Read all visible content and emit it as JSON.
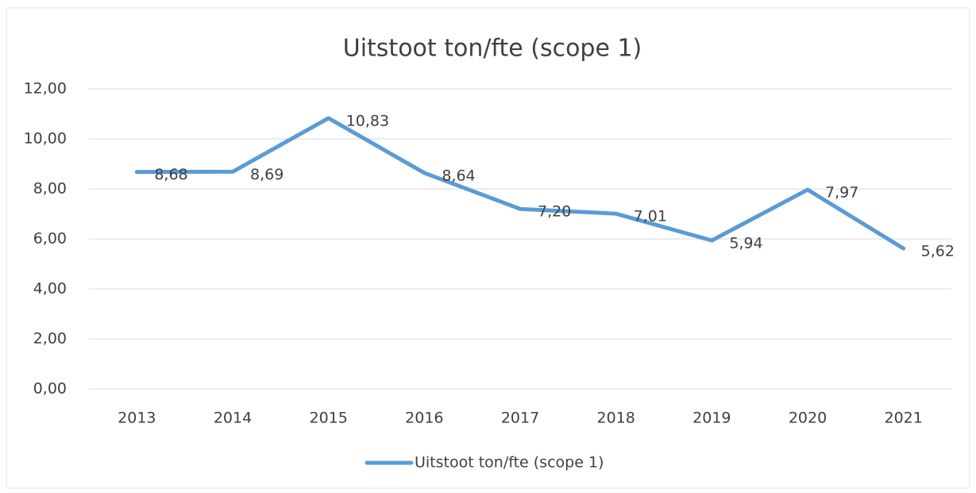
{
  "chart_data": {
    "type": "line",
    "title": "Uitstoot ton/fte (scope 1)",
    "categories": [
      "2013",
      "2014",
      "2015",
      "2016",
      "2017",
      "2018",
      "2019",
      "2020",
      "2021"
    ],
    "series": [
      {
        "name": "Uitstoot ton/fte (scope 1)",
        "color": "#5b9bd5",
        "values": [
          8.68,
          8.69,
          10.83,
          8.64,
          7.2,
          7.01,
          5.94,
          7.97,
          5.62
        ],
        "value_labels": [
          "8,68",
          "8,69",
          "10,83",
          "8,64",
          "7,20",
          "7,01",
          "5,94",
          "7,97",
          "5,62"
        ]
      }
    ],
    "ylim": [
      0,
      12
    ],
    "yticks": [
      {
        "value": 0,
        "label": "0,00"
      },
      {
        "value": 2,
        "label": "2,00"
      },
      {
        "value": 4,
        "label": "4,00"
      },
      {
        "value": 6,
        "label": "6,00"
      },
      {
        "value": 8,
        "label": "8,00"
      },
      {
        "value": 10,
        "label": "10,00"
      },
      {
        "value": 12,
        "label": "12,00"
      }
    ],
    "grid": true,
    "legend": "bottom"
  }
}
